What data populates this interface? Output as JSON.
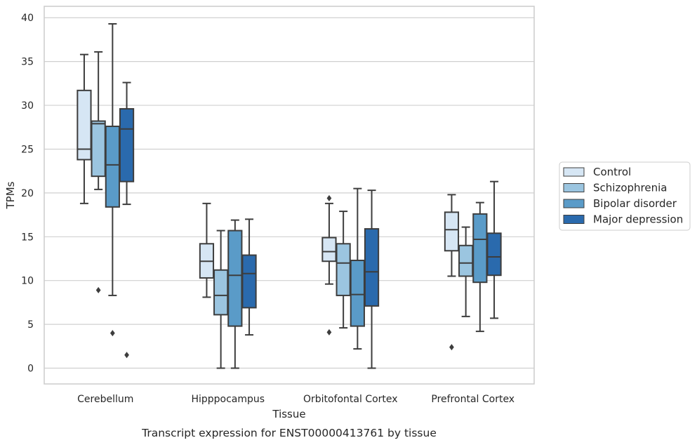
{
  "chart_data": {
    "type": "box",
    "title": "",
    "caption": "Transcript expression for ENST00000413761 by tissue",
    "xlabel": "Tissue",
    "ylabel": "TPMs",
    "ylim": [
      -1.8,
      41.3
    ],
    "yticks": [
      0,
      5,
      10,
      15,
      20,
      25,
      30,
      35,
      40
    ],
    "grid": "horizontal",
    "legend_position": "right",
    "categories": [
      "Cerebellum",
      "Hipppocampus",
      "Orbitofontal Cortex",
      "Prefrontal Cortex"
    ],
    "series": [
      {
        "name": "Control",
        "color": "#d6e6f4",
        "boxes": [
          {
            "whisker_low": 18.8,
            "q1": 23.8,
            "median": 25.0,
            "q3": 31.7,
            "whisker_high": 35.8,
            "outliers": []
          },
          {
            "whisker_low": 8.1,
            "q1": 10.3,
            "median": 12.2,
            "q3": 14.2,
            "whisker_high": 18.8,
            "outliers": []
          },
          {
            "whisker_low": 9.6,
            "q1": 12.2,
            "median": 13.3,
            "q3": 14.9,
            "whisker_high": 18.8,
            "outliers": [
              4.1,
              19.4
            ]
          },
          {
            "whisker_low": 10.5,
            "q1": 13.4,
            "median": 15.8,
            "q3": 17.8,
            "whisker_high": 19.8,
            "outliers": [
              2.4
            ]
          }
        ]
      },
      {
        "name": "Schizophrenia",
        "color": "#9bc5e0",
        "boxes": [
          {
            "whisker_low": 20.4,
            "q1": 21.9,
            "median": 27.9,
            "q3": 28.2,
            "whisker_high": 36.1,
            "outliers": [
              8.9
            ]
          },
          {
            "whisker_low": 0.0,
            "q1": 6.1,
            "median": 8.3,
            "q3": 11.2,
            "whisker_high": 15.7,
            "outliers": []
          },
          {
            "whisker_low": 4.6,
            "q1": 8.3,
            "median": 12.0,
            "q3": 14.2,
            "whisker_high": 17.9,
            "outliers": []
          },
          {
            "whisker_low": 5.9,
            "q1": 10.5,
            "median": 12.0,
            "q3": 14.0,
            "whisker_high": 16.1,
            "outliers": []
          }
        ]
      },
      {
        "name": "Bipolar disorder",
        "color": "#5a9bc8",
        "boxes": [
          {
            "whisker_low": 8.3,
            "q1": 18.4,
            "median": 23.2,
            "q3": 27.6,
            "whisker_high": 39.3,
            "outliers": [
              4.0
            ]
          },
          {
            "whisker_low": 0.0,
            "q1": 4.8,
            "median": 10.6,
            "q3": 15.7,
            "whisker_high": 16.9,
            "outliers": []
          },
          {
            "whisker_low": 2.2,
            "q1": 4.8,
            "median": 8.4,
            "q3": 12.3,
            "whisker_high": 20.5,
            "outliers": []
          },
          {
            "whisker_low": 4.2,
            "q1": 9.8,
            "median": 14.7,
            "q3": 17.6,
            "whisker_high": 18.9,
            "outliers": []
          }
        ]
      },
      {
        "name": "Major depression",
        "color": "#2a6aad",
        "boxes": [
          {
            "whisker_low": 18.7,
            "q1": 21.3,
            "median": 27.3,
            "q3": 29.6,
            "whisker_high": 32.6,
            "outliers": [
              1.5
            ]
          },
          {
            "whisker_low": 3.8,
            "q1": 6.9,
            "median": 10.8,
            "q3": 12.9,
            "whisker_high": 17.0,
            "outliers": []
          },
          {
            "whisker_low": 0.0,
            "q1": 7.1,
            "median": 11.0,
            "q3": 15.9,
            "whisker_high": 20.3,
            "outliers": []
          },
          {
            "whisker_low": 5.7,
            "q1": 10.6,
            "median": 12.7,
            "q3": 15.4,
            "whisker_high": 21.3,
            "outliers": []
          }
        ]
      }
    ]
  }
}
